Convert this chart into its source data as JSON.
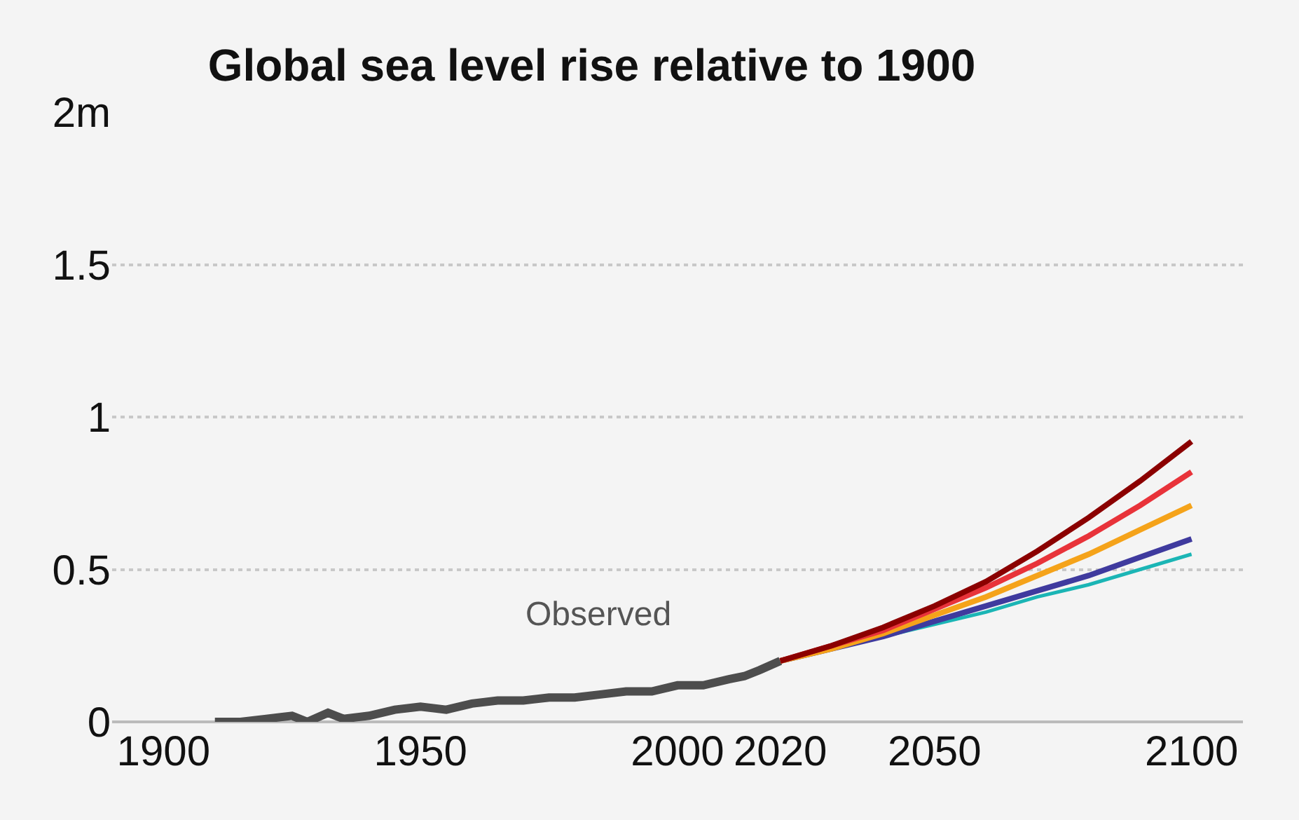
{
  "chart_data": {
    "type": "line",
    "title": "Global sea level rise relative to 1900",
    "xlim": [
      1890,
      2110
    ],
    "xticks": [
      1900,
      1950,
      2000,
      2020,
      2050,
      2100
    ],
    "ylim": [
      0,
      2
    ],
    "yticks": [
      0,
      0.5,
      1,
      1.5,
      {
        "value": 2,
        "label": "2m"
      }
    ],
    "grid": "y",
    "annotations": [
      "Observed"
    ],
    "series": [
      {
        "color": "#4d4d4d",
        "x": [
          1910,
          1915,
          1920,
          1925,
          1928,
          1932,
          1935,
          1940,
          1945,
          1950,
          1955,
          1960,
          1965,
          1970,
          1975,
          1980,
          1985,
          1990,
          1995,
          2000,
          2005,
          2010,
          2013,
          2016,
          2020
        ],
        "values": [
          0.0,
          0.0,
          0.01,
          0.02,
          0.0,
          0.03,
          0.01,
          0.02,
          0.04,
          0.05,
          0.04,
          0.06,
          0.07,
          0.07,
          0.08,
          0.08,
          0.09,
          0.1,
          0.1,
          0.12,
          0.12,
          0.14,
          0.15,
          0.17,
          0.2
        ]
      },
      {
        "color": "#1bb5b5",
        "x": [
          2020,
          2030,
          2040,
          2050,
          2060,
          2070,
          2080,
          2090,
          2100
        ],
        "values": [
          0.2,
          0.24,
          0.28,
          0.32,
          0.36,
          0.41,
          0.45,
          0.5,
          0.55
        ]
      },
      {
        "color": "#3f3a9e",
        "x": [
          2020,
          2030,
          2040,
          2050,
          2060,
          2070,
          2080,
          2090,
          2100
        ],
        "values": [
          0.2,
          0.24,
          0.28,
          0.33,
          0.38,
          0.43,
          0.48,
          0.54,
          0.6
        ]
      },
      {
        "color": "#f5a31a",
        "x": [
          2020,
          2030,
          2040,
          2050,
          2060,
          2070,
          2080,
          2090,
          2100
        ],
        "values": [
          0.2,
          0.24,
          0.29,
          0.35,
          0.41,
          0.48,
          0.55,
          0.63,
          0.71
        ]
      },
      {
        "color": "#e8333a",
        "x": [
          2020,
          2030,
          2040,
          2050,
          2060,
          2070,
          2080,
          2090,
          2100
        ],
        "values": [
          0.2,
          0.25,
          0.3,
          0.37,
          0.44,
          0.52,
          0.61,
          0.71,
          0.82
        ]
      },
      {
        "color": "#8b0000",
        "x": [
          2020,
          2030,
          2040,
          2050,
          2060,
          2070,
          2080,
          2090,
          2100
        ],
        "values": [
          0.2,
          0.25,
          0.31,
          0.38,
          0.46,
          0.56,
          0.67,
          0.79,
          0.92
        ]
      }
    ]
  }
}
